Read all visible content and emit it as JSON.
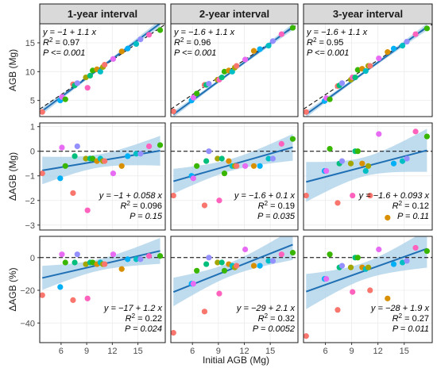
{
  "chart_data": {
    "type": "scatter",
    "layout": "facet-grid",
    "column_labels": [
      "1-year interval",
      "2-year interval",
      "3-year interval"
    ],
    "x_title": "Initial AGB (Mg)",
    "x_ticks": [
      6,
      9,
      12,
      15
    ],
    "x_range": [
      3.5,
      18.2
    ],
    "colors": {
      "regression_line": "#1f6fb4",
      "confidence_band": "#a9cfe8",
      "reference_line": "#000000",
      "strip_background": "#d9d9d9",
      "points": [
        "#f8766d",
        "#d89000",
        "#a3a500",
        "#39b600",
        "#00bf7d",
        "#00bfc4",
        "#00b0f6",
        "#9590ff",
        "#e76bf3",
        "#ff62bc"
      ]
    },
    "points_x": [
      3.8,
      5.9,
      6.1,
      6.5,
      7.4,
      7.6,
      7.9,
      8.9,
      9.1,
      9.4,
      9.7,
      10.2,
      10.6,
      10.9,
      11.1,
      12.1,
      13.1,
      13.8,
      14.8,
      15.3,
      16.3,
      17.6
    ],
    "point_color_index": [
      0,
      6,
      8,
      3,
      0,
      4,
      7,
      2,
      9,
      4,
      3,
      1,
      5,
      2,
      0,
      8,
      1,
      6,
      5,
      7,
      9,
      3
    ],
    "rows": [
      {
        "y_title": "AGB (Mg)",
        "y_ticks": [
          5,
          10,
          15
        ],
        "y_range": [
          2.2,
          18.3
        ],
        "reference": "identity",
        "panels": [
          {
            "eq": "y = −1 + 1.1 x",
            "r2": "0.97",
            "p": "P <= 0.001",
            "intercept": -1,
            "slope": 1.1,
            "y": [
              3.0,
              5.0,
              5.6,
              5.2,
              7.8,
              7.6,
              8.0,
              9.0,
              7.2,
              9.3,
              10.2,
              10.4,
              10.0,
              10.8,
              11.2,
              12.2,
              13.5,
              14.0,
              14.8,
              15.6,
              16.4,
              17.2
            ]
          },
          {
            "eq": "y = −1.6 + 1.1 x",
            "r2": "0.96",
            "p": "P <= 0.001",
            "intercept": -1.6,
            "slope": 1.1,
            "y": [
              3.1,
              5.0,
              5.5,
              6.2,
              7.7,
              7.7,
              7.9,
              8.6,
              8.6,
              9.0,
              10.0,
              10.2,
              10.0,
              10.7,
              11.0,
              12.1,
              13.6,
              13.9,
              14.5,
              15.3,
              16.5,
              17.6
            ]
          },
          {
            "eq": "y = −1.6 + 1.1 x",
            "r2": "0.95",
            "p": "P <= 0.001",
            "intercept": -1.6,
            "slope": 1.1,
            "y": [
              3.0,
              4.9,
              5.4,
              5.2,
              7.5,
              7.6,
              8.0,
              8.6,
              9.0,
              9.0,
              10.3,
              10.5,
              10.1,
              11.0,
              11.0,
              12.3,
              13.4,
              14.0,
              14.5,
              15.2,
              16.5,
              17.5
            ]
          }
        ]
      },
      {
        "y_title": "ΔAGB (Mg)",
        "y_ticks": [
          -3,
          -2,
          -1,
          0,
          1
        ],
        "y_range": [
          -3.2,
          1.15
        ],
        "reference": "zero",
        "panels": [
          {
            "eq": "y = −1 + 0.058 x",
            "r2": "0.096",
            "p": "P = 0.15",
            "intercept": -1,
            "slope": 0.058,
            "y": [
              -0.9,
              -1.1,
              0.15,
              -0.6,
              -1.7,
              -0.2,
              0.2,
              -0.3,
              -2.4,
              -0.3,
              -0.3,
              -0.4,
              -0.3,
              -0.4,
              -0.4,
              -0.9,
              -0.6,
              -0.2,
              -0.1,
              -0.1,
              0.2,
              0.25
            ]
          },
          {
            "eq": "y = −1.6 + 0.1 x",
            "r2": "0.19",
            "p": "P = 0.035",
            "intercept": -1.6,
            "slope": 0.1,
            "y": [
              -1.8,
              -1.0,
              -1.1,
              -0.6,
              -2.2,
              -0.4,
              0.0,
              -0.3,
              -2.0,
              -0.3,
              -0.9,
              -0.4,
              -0.6,
              -0.6,
              -0.6,
              -0.6,
              -0.6,
              -0.6,
              -0.3,
              -0.3,
              0.3,
              0.5
            ]
          },
          {
            "eq": "y = −1.6 + 0.093 x",
            "r2": "0.12",
            "p": "P = 0.11",
            "intercept": -1.6,
            "slope": 0.093,
            "y": [
              -1.8,
              -0.8,
              -0.8,
              0.1,
              -2.1,
              -0.5,
              -0.4,
              -0.5,
              -1.8,
              0.0,
              0.0,
              -0.5,
              -0.8,
              -0.6,
              -1.8,
              0.7,
              -2.7,
              -0.5,
              -0.4,
              -0.3,
              0.8,
              0.6
            ]
          }
        ]
      },
      {
        "y_title": "ΔAGB (%)",
        "y_ticks": [
          -40,
          -20,
          0
        ],
        "y_range": [
          -52,
          13
        ],
        "reference": "zero",
        "panels": [
          {
            "eq": "y = −17 + 1.2 x",
            "r2": "0.22",
            "p": "P = 0.024",
            "intercept": -17,
            "slope": 1.2,
            "y": [
              -23.0,
              -18.0,
              2.0,
              -3.0,
              -26.0,
              -3.0,
              2.0,
              -4.0,
              -25.0,
              -3.0,
              -3.0,
              -4.0,
              -3.0,
              -4.0,
              -4.0,
              2.0,
              -7.0,
              -1.0,
              -1.0,
              -1.0,
              1.0,
              1.0
            ]
          },
          {
            "eq": "y = −29 + 2.1 x",
            "r2": "0.32",
            "p": "P = 0.0052",
            "intercept": -29,
            "slope": 2.1,
            "y": [
              -46.0,
              -16.0,
              -16.0,
              -8.0,
              -33.0,
              -4.0,
              0.0,
              -3.0,
              -22.0,
              -3.0,
              -8.0,
              -4.0,
              -5.0,
              -6.0,
              -5.0,
              5.0,
              -5.0,
              -5.0,
              -2.0,
              -2.0,
              2.0,
              3.0
            ]
          },
          {
            "eq": "y = −28 + 1.9 x",
            "r2": "0.27",
            "p": "P = 0.011",
            "intercept": -28,
            "slope": 1.9,
            "y": [
              -48.0,
              -13.0,
              -13.0,
              2.0,
              -32.0,
              -6.0,
              -5.0,
              -6.0,
              -21.0,
              0.0,
              0.0,
              -6.0,
              -7.0,
              -6.0,
              -20.0,
              5.0,
              -25.0,
              -4.0,
              -3.0,
              -2.0,
              6.0,
              4.0
            ]
          }
        ]
      }
    ]
  }
}
